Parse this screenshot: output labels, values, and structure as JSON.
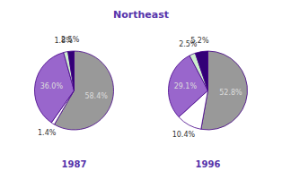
{
  "chart_data": [
    {
      "type": "pie",
      "title": "Northeast",
      "xlabel": "1987",
      "values": [
        58.4,
        1.4,
        36.0,
        1.8,
        2.5
      ],
      "value_labels": [
        "58.4%",
        "1.4%",
        "36.0%",
        "1.8%",
        "2.5%"
      ],
      "colors": [
        "#999999",
        "#ffffff",
        "#9966cc",
        "#cceecc",
        "#330077"
      ],
      "data_labels": true
    },
    {
      "type": "pie",
      "xlabel": "1996",
      "values": [
        52.8,
        10.4,
        29.1,
        2.5,
        5.2
      ],
      "value_labels": [
        "52.8%",
        "10.4%",
        "29.1%",
        "2.5%",
        "5.2%"
      ],
      "colors": [
        "#999999",
        "#ffffff",
        "#9966cc",
        "#cceecc",
        "#330077"
      ],
      "data_labels": true
    }
  ]
}
